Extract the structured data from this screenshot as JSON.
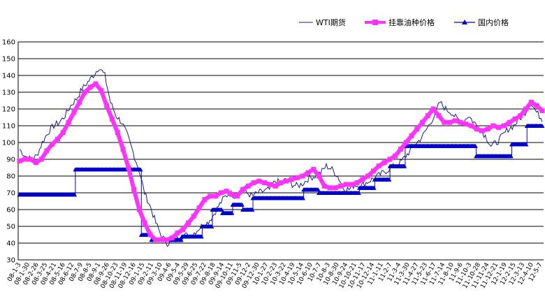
{
  "chart_data": {
    "type": "line",
    "title": "",
    "xlabel": "",
    "ylabel": "",
    "ylim": [
      30,
      160
    ],
    "y_ticks": [
      30,
      40,
      50,
      60,
      70,
      80,
      90,
      100,
      110,
      120,
      130,
      140,
      150,
      160
    ],
    "grid": "horizontal",
    "legend_position": "top",
    "x_tick_labels": [
      "08-1-3",
      "08-1-30",
      "08-2-26",
      "08-3-25",
      "08-4-21",
      "08-5-16",
      "08-6-12",
      "08-7-9",
      "08-8-5",
      "08-9-1",
      "08-9-26",
      "08-10-23",
      "08-11-19",
      "08-12-16",
      "09-1-15",
      "09-2-11",
      "09-3-10",
      "09-4-6",
      "09-5-4",
      "09-5-29",
      "09-6-25",
      "09-7-22",
      "09-8-18",
      "09-9-14",
      "09-10-11",
      "09-11-5",
      "09-12-2",
      "09-12-30",
      "10-1-27",
      "10-2-23",
      "10-3-22",
      "10-4-19",
      "10-5-14",
      "10-6-10",
      "10-7-7",
      "10-8-3",
      "10-8-30",
      "10-9-24",
      "10-10-21",
      "10-11-17",
      "10-12-14",
      "11-1-11",
      "11-2-7",
      "11-3-4",
      "11-3-30",
      "11-4-27",
      "11-5-23",
      "11-6-17",
      "11-7-14",
      "11-8-10",
      "11-9-6",
      "11-10-3",
      "11-10-28",
      "11-11-24",
      "11-12-21",
      "12-1-19",
      "12-2-15",
      "12-3-13",
      "12-4-10",
      "12-5-7"
    ],
    "series": [
      {
        "name": "WTI期货",
        "color": "#1a1a8c",
        "style": "thin-line",
        "values": [
          96,
          92,
          90,
          92,
          100,
          106,
          110,
          112,
          116,
          122,
          126,
          132,
          136,
          140,
          145,
          140,
          124,
          116,
          112,
          104,
          94,
          84,
          70,
          62,
          52,
          44,
          40,
          41,
          43,
          45,
          44,
          47,
          50,
          52,
          56,
          62,
          67,
          70,
          68,
          72,
          70,
          68,
          70,
          71,
          72,
          77,
          76,
          78,
          75,
          74,
          76,
          79,
          80,
          82,
          86,
          84,
          80,
          73,
          72,
          75,
          74,
          76,
          78,
          80,
          82,
          84,
          86,
          88,
          92,
          96,
          100,
          104,
          110,
          116,
          124,
          120,
          118,
          114,
          112,
          116,
          112,
          108,
          104,
          98,
          100,
          104,
          108,
          110,
          114,
          118,
          124,
          118,
          114
        ]
      },
      {
        "name": "挂靠油种价格",
        "color": "#ff33ff",
        "style": "thick-line-square-markers",
        "values": [
          89,
          90,
          90,
          88,
          90,
          95,
          99,
          102,
          106,
          112,
          118,
          124,
          130,
          133,
          135,
          131,
          122,
          114,
          106,
          96,
          85,
          72,
          60,
          52,
          45,
          42,
          42,
          42,
          43,
          46,
          48,
          52,
          56,
          61,
          66,
          68,
          68,
          70,
          71,
          69,
          68,
          72,
          74,
          76,
          77,
          76,
          75,
          74,
          76,
          77,
          78,
          79,
          80,
          82,
          84,
          80,
          74,
          73,
          73,
          74,
          75,
          75,
          76,
          78,
          80,
          83,
          86,
          88,
          90,
          92,
          96,
          100,
          104,
          108,
          112,
          116,
          120,
          116,
          112,
          112,
          113,
          112,
          111,
          110,
          108,
          107,
          108,
          110,
          109,
          110,
          112,
          114,
          116,
          120,
          124,
          122,
          119
        ]
      },
      {
        "name": "国内价格",
        "color": "#0000cc",
        "style": "step-line-triangle-markers",
        "values": [
          69,
          69,
          69,
          69,
          69,
          69,
          69,
          69,
          69,
          69,
          69,
          84,
          84,
          84,
          84,
          84,
          84,
          84,
          84,
          84,
          84,
          84,
          84,
          84,
          45,
          45,
          42,
          42,
          42,
          42,
          42,
          42,
          44,
          44,
          44,
          44,
          50,
          50,
          60,
          60,
          58,
          58,
          63,
          63,
          60,
          60,
          67,
          67,
          67,
          67,
          67,
          67,
          67,
          67,
          67,
          67,
          72,
          72,
          72,
          70,
          70,
          70,
          70,
          70,
          70,
          70,
          70,
          73,
          73,
          73,
          78,
          78,
          78,
          86,
          86,
          86,
          98,
          98,
          98,
          98,
          98,
          98,
          98,
          98,
          98,
          98,
          98,
          98,
          98,
          98,
          92,
          92,
          92,
          92,
          92,
          92,
          92,
          99,
          99,
          99,
          110,
          110,
          110,
          110
        ]
      }
    ]
  }
}
